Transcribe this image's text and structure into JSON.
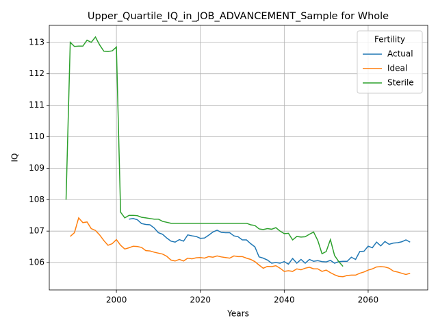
{
  "chart_data": {
    "type": "line",
    "title": "Upper_Quartile_IQ_in_JOB_ADVANCEMENT_Sample for Whole",
    "x_label": "Years",
    "y_label": "IQ",
    "x": [
      1988,
      1989,
      1990,
      1991,
      1992,
      1993,
      1994,
      1995,
      1996,
      1997,
      1998,
      1999,
      2000,
      2001,
      2002,
      2003,
      2004,
      2005,
      2006,
      2007,
      2008,
      2009,
      2010,
      2011,
      2012,
      2013,
      2014,
      2015,
      2016,
      2017,
      2018,
      2019,
      2020,
      2021,
      2022,
      2023,
      2024,
      2025,
      2026,
      2027,
      2028,
      2029,
      2030,
      2031,
      2032,
      2033,
      2034,
      2035,
      2036,
      2037,
      2038,
      2039,
      2040,
      2041,
      2042,
      2043,
      2044,
      2045,
      2046,
      2047,
      2048,
      2049,
      2050,
      2051,
      2052,
      2053,
      2054,
      2055,
      2056,
      2057,
      2058,
      2059,
      2060,
      2061,
      2062,
      2063,
      2064,
      2065,
      2066,
      2067,
      2068,
      2069,
      2070
    ],
    "series": [
      {
        "name": "Actual",
        "color": "#1f77b4",
        "values": [
          null,
          null,
          null,
          null,
          null,
          null,
          null,
          null,
          null,
          null,
          null,
          null,
          null,
          null,
          null,
          107.38,
          107.4,
          107.36,
          107.24,
          107.21,
          107.2,
          107.1,
          106.95,
          106.9,
          106.78,
          106.68,
          106.65,
          106.73,
          106.68,
          106.88,
          106.85,
          106.83,
          106.77,
          106.78,
          106.87,
          106.97,
          107.03,
          106.96,
          106.95,
          106.95,
          106.85,
          106.82,
          106.72,
          106.72,
          106.6,
          106.5,
          106.18,
          106.14,
          106.08,
          105.98,
          106.0,
          105.98,
          106.03,
          105.95,
          106.13,
          105.98,
          106.1,
          105.98,
          106.1,
          106.04,
          106.06,
          106.03,
          106.02,
          106.07,
          105.98,
          106.03,
          106.04,
          106.04,
          106.17,
          106.1,
          106.35,
          106.36,
          106.52,
          106.47,
          106.65,
          106.53,
          106.67,
          106.58,
          106.62,
          106.63,
          106.66,
          106.72,
          106.65
        ]
      },
      {
        "name": "Ideal",
        "color": "#ff7f0e",
        "values": [
          null,
          106.83,
          106.95,
          107.42,
          107.27,
          107.29,
          107.08,
          107.02,
          106.88,
          106.7,
          106.55,
          106.6,
          106.73,
          106.55,
          106.43,
          106.47,
          106.52,
          106.51,
          106.48,
          106.38,
          106.37,
          106.33,
          106.3,
          106.27,
          106.2,
          106.08,
          106.05,
          106.1,
          106.05,
          106.14,
          106.12,
          106.15,
          106.16,
          106.14,
          106.19,
          106.17,
          106.21,
          106.18,
          106.16,
          106.14,
          106.21,
          106.19,
          106.19,
          106.14,
          106.1,
          106.03,
          105.92,
          105.82,
          105.88,
          105.87,
          105.9,
          105.82,
          105.72,
          105.74,
          105.72,
          105.8,
          105.77,
          105.82,
          105.85,
          105.8,
          105.8,
          105.72,
          105.76,
          105.68,
          105.61,
          105.56,
          105.55,
          105.59,
          105.6,
          105.6,
          105.66,
          105.7,
          105.76,
          105.8,
          105.86,
          105.87,
          105.86,
          105.82,
          105.73,
          105.7,
          105.66,
          105.62,
          105.66
        ]
      },
      {
        "name": "Sterile",
        "color": "#2ca02c",
        "values": [
          108.0,
          113.0,
          112.87,
          112.88,
          112.88,
          113.07,
          113.0,
          113.17,
          112.92,
          112.72,
          112.71,
          112.73,
          112.85,
          107.6,
          107.42,
          107.5,
          107.5,
          107.49,
          107.44,
          107.42,
          107.4,
          107.38,
          107.38,
          107.31,
          107.28,
          107.25,
          107.25,
          107.25,
          107.25,
          107.25,
          107.25,
          107.25,
          107.25,
          107.25,
          107.25,
          107.25,
          107.25,
          107.25,
          107.25,
          107.25,
          107.25,
          107.25,
          107.25,
          107.25,
          107.2,
          107.18,
          107.07,
          107.05,
          107.08,
          107.06,
          107.11,
          107.0,
          106.92,
          106.93,
          106.72,
          106.83,
          106.81,
          106.82,
          106.9,
          106.97,
          106.7,
          106.28,
          106.35,
          106.73,
          106.22,
          106.03,
          105.88,
          null,
          null,
          null,
          null,
          null,
          null,
          null,
          null,
          null,
          null,
          null,
          null,
          null,
          null,
          null,
          null
        ]
      }
    ],
    "xlim": [
      1984,
      2074.2
    ],
    "ylim": [
      105.13,
      113.54
    ],
    "xticks": [
      2000,
      2020,
      2040,
      2060
    ],
    "yticks": [
      106,
      107,
      108,
      109,
      110,
      111,
      112,
      113
    ],
    "grid": true,
    "legend_title": "Fertility",
    "legend_loc": "upper right"
  }
}
